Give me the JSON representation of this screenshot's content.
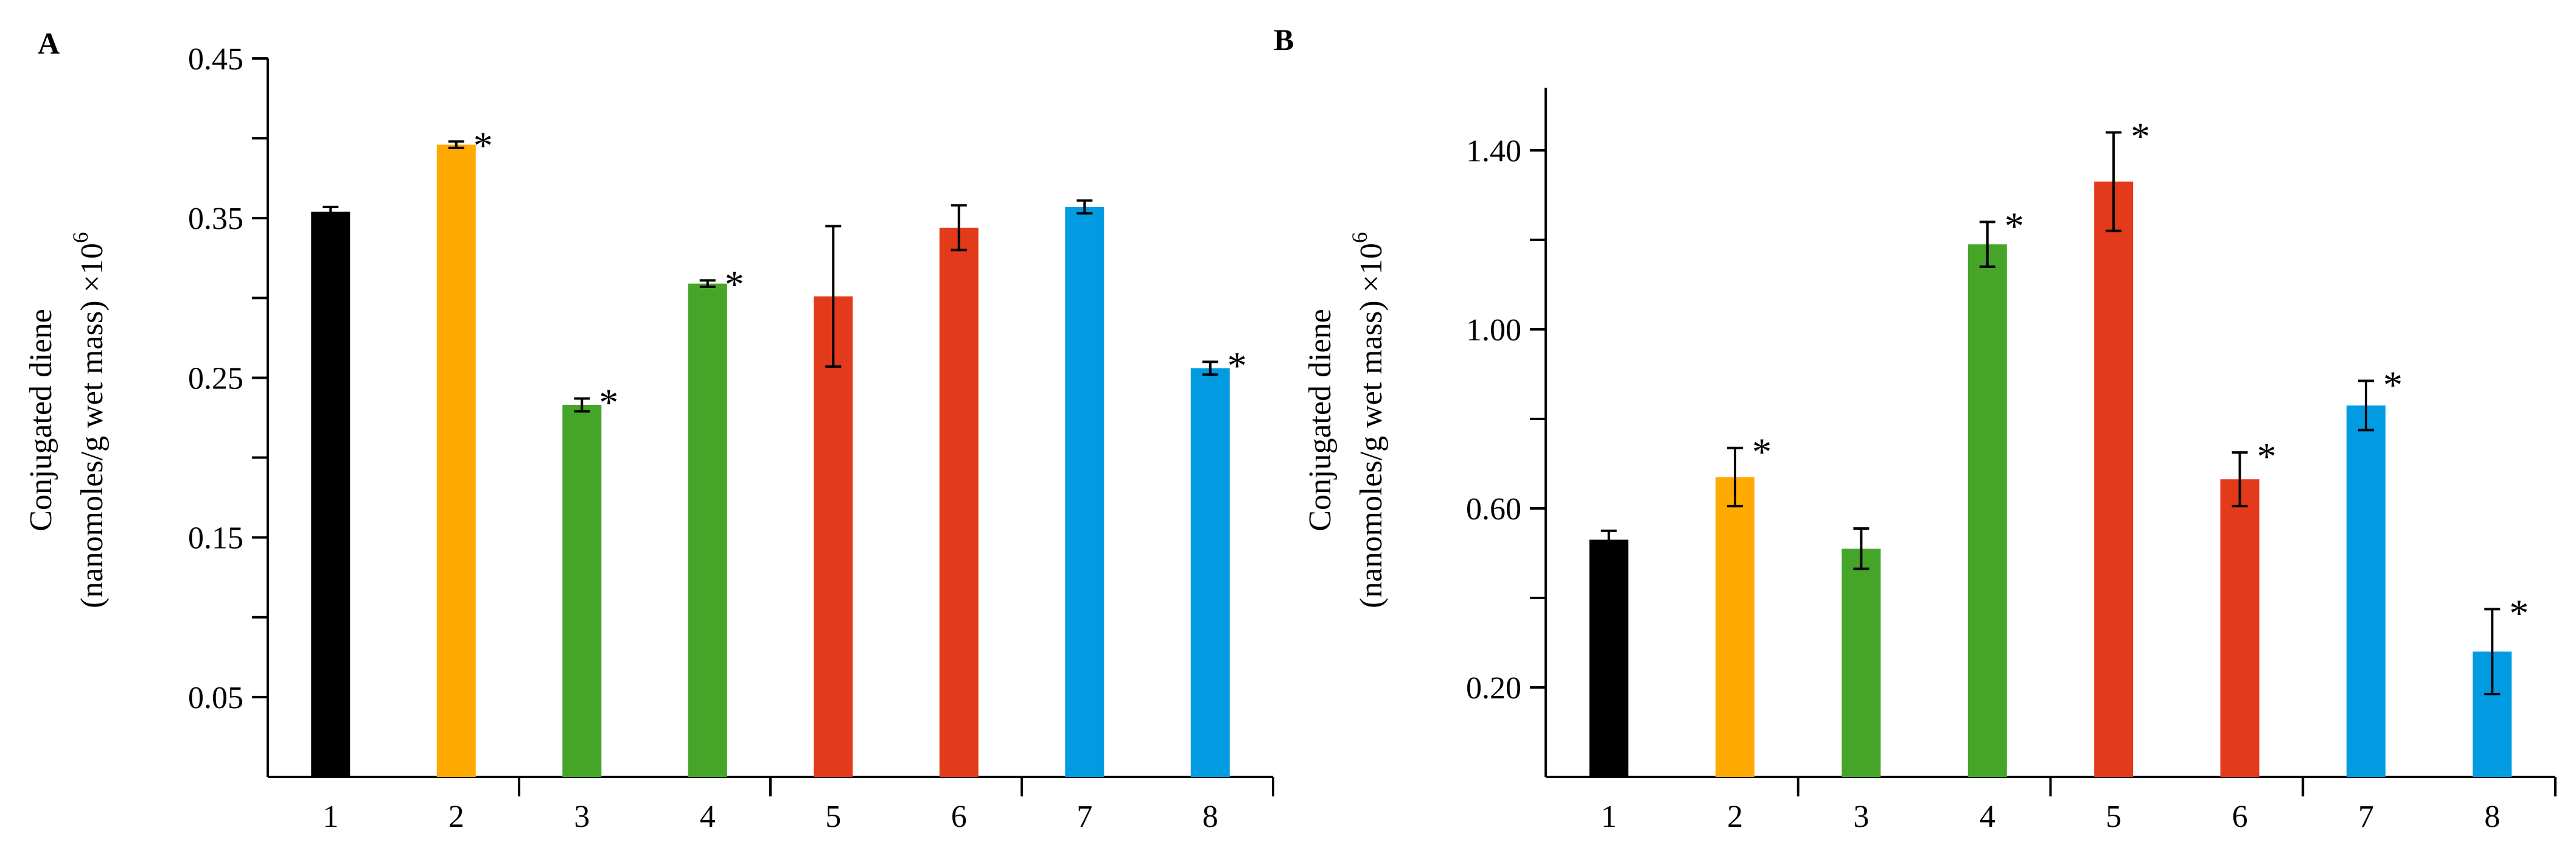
{
  "chart_data": [
    {
      "type": "bar",
      "panel_label": "A",
      "categories": [
        "1",
        "2",
        "3",
        "4",
        "5",
        "6",
        "7",
        "8"
      ],
      "values": [
        0.354,
        0.396,
        0.233,
        0.309,
        0.301,
        0.344,
        0.357,
        0.256
      ],
      "errors": [
        0.003,
        0.002,
        0.004,
        0.002,
        0.044,
        0.014,
        0.004,
        0.004
      ],
      "significant": [
        false,
        true,
        true,
        true,
        false,
        false,
        false,
        true
      ],
      "colors": [
        "#000000",
        "#FFAA00",
        "#45A529",
        "#45A529",
        "#E23A1A",
        "#E23A1A",
        "#009BE1",
        "#009BE1"
      ],
      "ylim": [
        0,
        0.45
      ],
      "yticks": [
        0.05,
        0.15,
        0.25,
        0.35,
        0.45
      ],
      "ytick_labels": [
        "0.05",
        "0.15",
        "0.25",
        "0.35",
        "0.45"
      ],
      "ylabel_line1": "Conjugated diene",
      "ylabel_line2": "(nanomoles/g wet mass) ×10",
      "ylabel_exp": "6",
      "star_label": "*"
    },
    {
      "type": "bar",
      "panel_label": "B",
      "categories": [
        "1",
        "2",
        "3",
        "4",
        "5",
        "6",
        "7",
        "8"
      ],
      "values": [
        0.53,
        0.67,
        0.51,
        1.19,
        1.33,
        0.665,
        0.83,
        0.28
      ],
      "errors": [
        0.02,
        0.065,
        0.045,
        0.05,
        0.11,
        0.06,
        0.055,
        0.095
      ],
      "significant": [
        false,
        true,
        false,
        true,
        true,
        true,
        true,
        true
      ],
      "colors": [
        "#000000",
        "#FFAA00",
        "#45A529",
        "#45A529",
        "#E23A1A",
        "#E23A1A",
        "#009BE1",
        "#009BE1"
      ],
      "ylim": [
        0,
        1.54
      ],
      "yticks": [
        0.2,
        0.4,
        0.6,
        0.8,
        1.0,
        1.2,
        1.4
      ],
      "ytick_labels": [
        "0.20",
        "",
        "0.60",
        "",
        "1.00",
        "",
        "1.40"
      ],
      "ylabel_line1": "Conjugated diene",
      "ylabel_line2": "(nanomoles/g wet mass) ×10",
      "ylabel_exp": "6",
      "star_label": "*"
    }
  ]
}
